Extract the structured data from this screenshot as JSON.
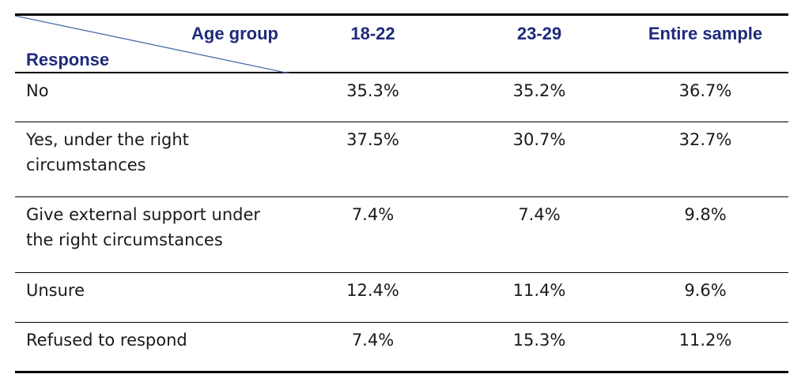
{
  "table": {
    "header": {
      "age_group_label": "Age group",
      "response_label": "Response",
      "columns": [
        "18-22",
        "23-29",
        "Entire sample"
      ]
    },
    "rows": [
      {
        "response": "No",
        "values": [
          "35.3%",
          "35.2%",
          "36.7%"
        ]
      },
      {
        "response": "Yes, under the right circumstances",
        "values": [
          "37.5%",
          "30.7%",
          "32.7%"
        ]
      },
      {
        "response": "Give external support under the right circumstances",
        "values": [
          "7.4%",
          "7.4%",
          "9.8%"
        ]
      },
      {
        "response": "Unsure",
        "values": [
          "12.4%",
          "11.4%",
          "9.6%"
        ]
      },
      {
        "response": "Refused to respond",
        "values": [
          "7.4%",
          "15.3%",
          "11.2%"
        ]
      }
    ]
  },
  "colors": {
    "header_text": "#1f2a7a",
    "diagonal_line": "#4a6fa5",
    "body_text": "#1a1a1a",
    "rules": "#000000"
  }
}
